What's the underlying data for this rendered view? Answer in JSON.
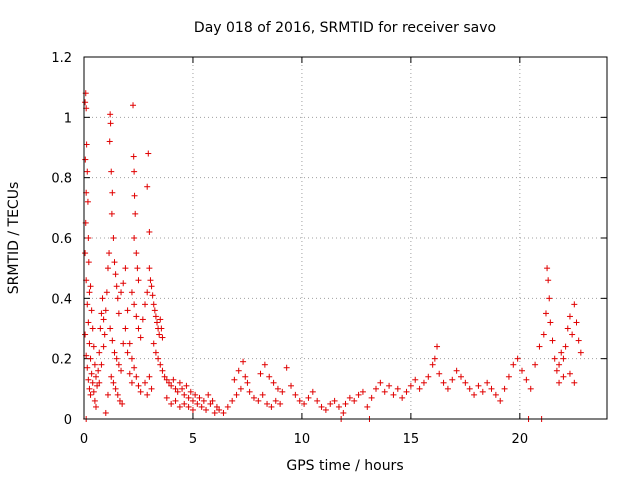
{
  "chart_data": {
    "type": "scatter",
    "title": "Day 018 of 2016, SRMTID for receiver savo",
    "xlabel": "GPS time / hours",
    "ylabel": "SRMTID / TECUs",
    "xlim": [
      0,
      24
    ],
    "ylim": [
      0,
      1.2
    ],
    "x_ticks": [
      0,
      5,
      10,
      15,
      20
    ],
    "x_tick_labels": [
      "0",
      "5",
      "10",
      "15",
      "20"
    ],
    "y_ticks": [
      0,
      0.2,
      0.4,
      0.6,
      0.8,
      1.0,
      1.2
    ],
    "y_tick_labels": [
      "0",
      "0.2",
      "0.4",
      "0.6",
      "0.8",
      "1",
      "1.2"
    ],
    "grid": true,
    "marker": "plus",
    "color": "#e00000",
    "series": [
      {
        "name": "SRMTID",
        "points": [
          [
            0.05,
            1.05
          ],
          [
            0.08,
            1.08
          ],
          [
            0.1,
            1.03
          ],
          [
            0.06,
            0.86
          ],
          [
            0.12,
            0.91
          ],
          [
            0.15,
            0.82
          ],
          [
            0.1,
            0.75
          ],
          [
            0.18,
            0.72
          ],
          [
            0.08,
            0.65
          ],
          [
            0.2,
            0.6
          ],
          [
            0.05,
            0.55
          ],
          [
            0.22,
            0.52
          ],
          [
            0.1,
            0.46
          ],
          [
            0.25,
            0.42
          ],
          [
            0.3,
            0.44
          ],
          [
            0.15,
            0.38
          ],
          [
            0.35,
            0.36
          ],
          [
            0.2,
            0.32
          ],
          [
            0.4,
            0.3
          ],
          [
            0.05,
            0.28
          ],
          [
            0.25,
            0.25
          ],
          [
            0.45,
            0.24
          ],
          [
            0.1,
            0.21
          ],
          [
            0.3,
            0.2
          ],
          [
            0.5,
            0.18
          ],
          [
            0.15,
            0.17
          ],
          [
            0.35,
            0.15
          ],
          [
            0.55,
            0.14
          ],
          [
            0.2,
            0.13
          ],
          [
            0.4,
            0.12
          ],
          [
            0.6,
            0.11
          ],
          [
            0.25,
            0.1
          ],
          [
            0.45,
            0.09
          ],
          [
            0.65,
            0.16
          ],
          [
            0.7,
            0.22
          ],
          [
            0.75,
            0.3
          ],
          [
            0.8,
            0.35
          ],
          [
            0.85,
            0.4
          ],
          [
            0.9,
            0.33
          ],
          [
            0.95,
            0.28
          ],
          [
            0.5,
            0.06
          ],
          [
            0.3,
            0.08
          ],
          [
            0.55,
            0.04
          ],
          [
            0.1,
            0.0
          ],
          [
            0.7,
            0.12
          ],
          [
            0.8,
            0.18
          ],
          [
            0.9,
            0.24
          ],
          [
            1.0,
            0.36
          ],
          [
            1.05,
            0.42
          ],
          [
            1.1,
            0.5
          ],
          [
            1.15,
            0.55
          ],
          [
            1.2,
            1.01
          ],
          [
            1.22,
            0.98
          ],
          [
            1.18,
            0.92
          ],
          [
            1.25,
            0.82
          ],
          [
            1.3,
            0.75
          ],
          [
            1.28,
            0.68
          ],
          [
            1.35,
            0.6
          ],
          [
            1.4,
            0.52
          ],
          [
            1.45,
            0.48
          ],
          [
            1.5,
            0.44
          ],
          [
            1.55,
            0.4
          ],
          [
            1.6,
            0.35
          ],
          [
            1.2,
            0.3
          ],
          [
            1.3,
            0.26
          ],
          [
            1.4,
            0.22
          ],
          [
            1.5,
            0.2
          ],
          [
            1.6,
            0.18
          ],
          [
            1.7,
            0.16
          ],
          [
            1.25,
            0.14
          ],
          [
            1.35,
            0.12
          ],
          [
            1.45,
            0.1
          ],
          [
            1.55,
            0.08
          ],
          [
            1.65,
            0.06
          ],
          [
            1.75,
            0.05
          ],
          [
            1.0,
            0.02
          ],
          [
            1.1,
            0.08
          ],
          [
            1.8,
            0.25
          ],
          [
            1.9,
            0.3
          ],
          [
            2.0,
            0.36
          ],
          [
            1.7,
            0.42
          ],
          [
            1.8,
            0.45
          ],
          [
            1.9,
            0.5
          ],
          [
            2.0,
            0.22
          ],
          [
            2.1,
            0.15
          ],
          [
            2.2,
            0.12
          ],
          [
            2.25,
            1.04
          ],
          [
            2.28,
            0.87
          ],
          [
            2.3,
            0.82
          ],
          [
            2.32,
            0.74
          ],
          [
            2.35,
            0.68
          ],
          [
            2.3,
            0.6
          ],
          [
            2.4,
            0.55
          ],
          [
            2.45,
            0.5
          ],
          [
            2.5,
            0.46
          ],
          [
            2.2,
            0.42
          ],
          [
            2.3,
            0.38
          ],
          [
            2.4,
            0.34
          ],
          [
            2.5,
            0.3
          ],
          [
            2.6,
            0.27
          ],
          [
            2.1,
            0.25
          ],
          [
            2.2,
            0.2
          ],
          [
            2.3,
            0.17
          ],
          [
            2.4,
            0.14
          ],
          [
            2.5,
            0.11
          ],
          [
            2.6,
            0.09
          ],
          [
            2.7,
            0.33
          ],
          [
            2.8,
            0.38
          ],
          [
            2.9,
            0.42
          ],
          [
            2.95,
            0.88
          ],
          [
            2.9,
            0.77
          ],
          [
            3.0,
            0.62
          ],
          [
            3.0,
            0.5
          ],
          [
            3.05,
            0.46
          ],
          [
            3.1,
            0.44
          ],
          [
            3.15,
            0.41
          ],
          [
            3.2,
            0.38
          ],
          [
            3.25,
            0.36
          ],
          [
            3.3,
            0.34
          ],
          [
            3.35,
            0.32
          ],
          [
            3.4,
            0.3
          ],
          [
            3.45,
            0.28
          ],
          [
            3.5,
            0.33
          ],
          [
            3.55,
            0.3
          ],
          [
            3.6,
            0.27
          ],
          [
            3.2,
            0.25
          ],
          [
            3.3,
            0.22
          ],
          [
            3.4,
            0.2
          ],
          [
            3.5,
            0.18
          ],
          [
            3.6,
            0.16
          ],
          [
            3.7,
            0.14
          ],
          [
            3.8,
            0.13
          ],
          [
            3.9,
            0.12
          ],
          [
            3.0,
            0.14
          ],
          [
            3.1,
            0.1
          ],
          [
            2.8,
            0.12
          ],
          [
            2.9,
            0.08
          ],
          [
            4.0,
            0.11
          ],
          [
            4.1,
            0.13
          ],
          [
            4.2,
            0.1
          ],
          [
            4.3,
            0.09
          ],
          [
            4.4,
            0.12
          ],
          [
            4.5,
            0.1
          ],
          [
            4.6,
            0.08
          ],
          [
            4.7,
            0.11
          ],
          [
            4.8,
            0.07
          ],
          [
            4.9,
            0.09
          ],
          [
            5.0,
            0.06
          ],
          [
            3.8,
            0.07
          ],
          [
            4.0,
            0.05
          ],
          [
            4.2,
            0.06
          ],
          [
            4.4,
            0.04
          ],
          [
            4.6,
            0.05
          ],
          [
            4.8,
            0.04
          ],
          [
            5.0,
            0.03
          ],
          [
            5.2,
            0.05
          ],
          [
            5.4,
            0.04
          ],
          [
            5.6,
            0.03
          ],
          [
            5.8,
            0.05
          ],
          [
            6.0,
            0.02
          ],
          [
            5.1,
            0.08
          ],
          [
            5.3,
            0.07
          ],
          [
            5.5,
            0.06
          ],
          [
            5.7,
            0.08
          ],
          [
            5.9,
            0.06
          ],
          [
            6.1,
            0.04
          ],
          [
            6.2,
            0.03
          ],
          [
            6.4,
            0.02
          ],
          [
            6.6,
            0.04
          ],
          [
            6.8,
            0.06
          ],
          [
            7.0,
            0.08
          ],
          [
            7.2,
            0.1
          ],
          [
            7.3,
            0.19
          ],
          [
            7.1,
            0.16
          ],
          [
            6.9,
            0.13
          ],
          [
            7.4,
            0.14
          ],
          [
            7.5,
            0.12
          ],
          [
            7.6,
            0.09
          ],
          [
            7.8,
            0.07
          ],
          [
            8.0,
            0.06
          ],
          [
            8.2,
            0.08
          ],
          [
            8.4,
            0.05
          ],
          [
            8.6,
            0.04
          ],
          [
            8.8,
            0.06
          ],
          [
            9.0,
            0.05
          ],
          [
            8.1,
            0.15
          ],
          [
            8.3,
            0.18
          ],
          [
            8.5,
            0.14
          ],
          [
            8.7,
            0.12
          ],
          [
            8.9,
            0.1
          ],
          [
            9.1,
            0.09
          ],
          [
            9.3,
            0.17
          ],
          [
            9.5,
            0.11
          ],
          [
            9.7,
            0.08
          ],
          [
            9.9,
            0.06
          ],
          [
            10.1,
            0.05
          ],
          [
            10.3,
            0.07
          ],
          [
            10.5,
            0.09
          ],
          [
            10.7,
            0.06
          ],
          [
            10.9,
            0.04
          ],
          [
            11.1,
            0.03
          ],
          [
            11.3,
            0.05
          ],
          [
            11.5,
            0.06
          ],
          [
            11.7,
            0.04
          ],
          [
            11.9,
            0.02
          ],
          [
            11.8,
            0.0
          ],
          [
            12.0,
            0.05
          ],
          [
            12.2,
            0.07
          ],
          [
            12.4,
            0.06
          ],
          [
            12.6,
            0.08
          ],
          [
            12.8,
            0.09
          ],
          [
            13.0,
            0.04
          ],
          [
            13.1,
            0.0
          ],
          [
            13.2,
            0.07
          ],
          [
            13.4,
            0.1
          ],
          [
            13.6,
            0.12
          ],
          [
            13.8,
            0.09
          ],
          [
            14.0,
            0.11
          ],
          [
            14.2,
            0.08
          ],
          [
            14.4,
            0.1
          ],
          [
            14.6,
            0.07
          ],
          [
            14.8,
            0.09
          ],
          [
            15.0,
            0.11
          ],
          [
            15.2,
            0.13
          ],
          [
            15.4,
            0.1
          ],
          [
            15.6,
            0.12
          ],
          [
            15.8,
            0.14
          ],
          [
            16.0,
            0.18
          ],
          [
            16.2,
            0.24
          ],
          [
            16.1,
            0.2
          ],
          [
            16.3,
            0.15
          ],
          [
            16.5,
            0.12
          ],
          [
            16.7,
            0.1
          ],
          [
            16.9,
            0.13
          ],
          [
            17.1,
            0.16
          ],
          [
            17.3,
            0.14
          ],
          [
            17.5,
            0.12
          ],
          [
            17.7,
            0.1
          ],
          [
            17.9,
            0.08
          ],
          [
            18.1,
            0.11
          ],
          [
            18.3,
            0.09
          ],
          [
            18.5,
            0.12
          ],
          [
            18.7,
            0.1
          ],
          [
            18.9,
            0.08
          ],
          [
            19.1,
            0.06
          ],
          [
            19.3,
            0.1
          ],
          [
            19.5,
            0.14
          ],
          [
            19.7,
            0.18
          ],
          [
            19.9,
            0.2
          ],
          [
            20.1,
            0.16
          ],
          [
            20.3,
            0.13
          ],
          [
            20.5,
            0.1
          ],
          [
            20.4,
            0.0
          ],
          [
            20.7,
            0.18
          ],
          [
            20.9,
            0.24
          ],
          [
            21.0,
            0.0
          ],
          [
            21.1,
            0.28
          ],
          [
            21.2,
            0.35
          ],
          [
            21.25,
            0.5
          ],
          [
            21.3,
            0.46
          ],
          [
            21.35,
            0.4
          ],
          [
            21.4,
            0.32
          ],
          [
            21.5,
            0.26
          ],
          [
            21.6,
            0.2
          ],
          [
            21.7,
            0.16
          ],
          [
            21.8,
            0.18
          ],
          [
            21.9,
            0.22
          ],
          [
            22.0,
            0.2
          ],
          [
            22.1,
            0.24
          ],
          [
            22.2,
            0.3
          ],
          [
            22.3,
            0.34
          ],
          [
            22.4,
            0.28
          ],
          [
            22.5,
            0.38
          ],
          [
            22.6,
            0.32
          ],
          [
            22.7,
            0.26
          ],
          [
            22.8,
            0.22
          ],
          [
            22.5,
            0.12
          ],
          [
            22.3,
            0.15
          ],
          [
            22.0,
            0.14
          ],
          [
            21.8,
            0.12
          ]
        ]
      }
    ]
  }
}
